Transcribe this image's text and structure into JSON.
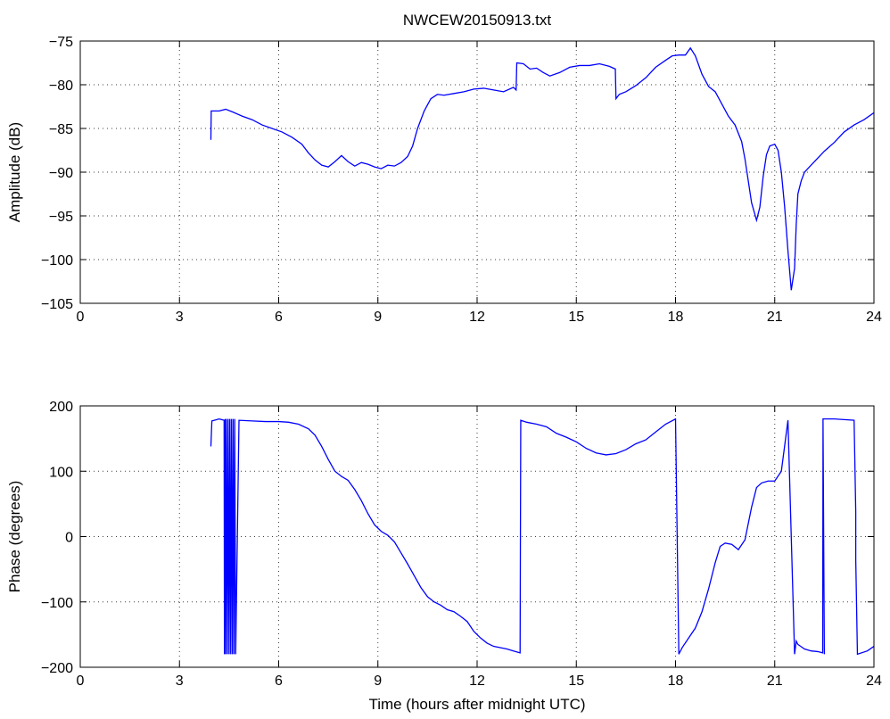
{
  "chart_data": [
    {
      "type": "line",
      "title": "NWCEW20150913.txt",
      "xlabel": "",
      "ylabel": "Amplitude (dB)",
      "xlim": [
        0,
        24
      ],
      "ylim": [
        -105,
        -75
      ],
      "xticks": [
        0,
        3,
        6,
        9,
        12,
        15,
        18,
        21,
        24
      ],
      "yticks": [
        -75,
        -80,
        -85,
        -90,
        -95,
        -100,
        -105
      ],
      "grid": true,
      "color": "#0000ff",
      "series": [
        {
          "x": [
            3.95,
            3.96,
            4.0,
            4.2,
            4.4,
            4.6,
            4.9,
            5.2,
            5.5,
            5.8,
            6.1,
            6.4,
            6.7,
            6.9,
            7.1,
            7.3,
            7.5,
            7.7,
            7.9,
            8.1,
            8.3,
            8.5,
            8.7,
            8.9,
            9.1,
            9.3,
            9.5,
            9.7,
            9.9,
            10.05,
            10.2,
            10.4,
            10.6,
            10.8,
            11.0,
            11.3,
            11.6,
            11.9,
            12.2,
            12.5,
            12.8,
            13.1,
            13.18,
            13.2,
            13.4,
            13.6,
            13.8,
            14.0,
            14.2,
            14.5,
            14.8,
            15.1,
            15.4,
            15.7,
            16.0,
            16.18,
            16.2,
            16.3,
            16.5,
            16.8,
            17.1,
            17.4,
            17.7,
            17.9,
            18.1,
            18.3,
            18.45,
            18.6,
            18.8,
            19.0,
            19.2,
            19.4,
            19.6,
            19.8,
            20.0,
            20.1,
            20.2,
            20.3,
            20.45,
            20.55,
            20.65,
            20.75,
            20.85,
            21.0,
            21.1,
            21.2,
            21.3,
            21.4,
            21.5,
            21.6,
            21.65,
            21.7,
            21.8,
            21.9,
            22.0,
            22.2,
            22.5,
            22.8,
            23.1,
            23.4,
            23.7,
            24.0
          ],
          "y": [
            -86.3,
            -83.0,
            -83.0,
            -83.0,
            -82.8,
            -83.1,
            -83.6,
            -84.0,
            -84.6,
            -85.0,
            -85.4,
            -86.0,
            -86.8,
            -87.8,
            -88.6,
            -89.2,
            -89.4,
            -88.8,
            -88.1,
            -88.8,
            -89.3,
            -88.9,
            -89.1,
            -89.4,
            -89.6,
            -89.2,
            -89.3,
            -88.9,
            -88.2,
            -87.0,
            -85.0,
            -83.0,
            -81.6,
            -81.1,
            -81.2,
            -81.0,
            -80.8,
            -80.5,
            -80.4,
            -80.6,
            -80.8,
            -80.3,
            -80.6,
            -77.5,
            -77.6,
            -78.2,
            -78.1,
            -78.6,
            -79.0,
            -78.6,
            -78.0,
            -77.8,
            -77.8,
            -77.6,
            -77.9,
            -78.2,
            -81.6,
            -81.1,
            -80.8,
            -80.1,
            -79.2,
            -78.0,
            -77.2,
            -76.7,
            -76.6,
            -76.6,
            -75.8,
            -76.7,
            -78.8,
            -80.2,
            -80.8,
            -82.2,
            -83.6,
            -84.6,
            -86.5,
            -88.5,
            -91.0,
            -93.5,
            -95.5,
            -94.0,
            -90.5,
            -88.0,
            -87.0,
            -86.8,
            -87.5,
            -90.0,
            -94.0,
            -99.0,
            -103.5,
            -101.0,
            -96.0,
            -92.5,
            -91.0,
            -90.0,
            -89.6,
            -88.8,
            -87.6,
            -86.6,
            -85.4,
            -84.6,
            -84.0,
            -83.2
          ]
        }
      ]
    },
    {
      "type": "line",
      "title": "",
      "xlabel": "Time (hours after midnight UTC)",
      "ylabel": "Phase (degrees)",
      "xlim": [
        0,
        24
      ],
      "ylim": [
        -200,
        200
      ],
      "xticks": [
        0,
        3,
        6,
        9,
        12,
        15,
        18,
        21,
        24
      ],
      "yticks": [
        200,
        100,
        0,
        -100,
        -200
      ],
      "grid": true,
      "color": "#0000ff",
      "series": [
        {
          "x": [
            3.95,
            3.98,
            4.2,
            4.35,
            4.36,
            4.38,
            4.4,
            4.42,
            4.45,
            4.47,
            4.5,
            4.52,
            4.55,
            4.57,
            4.6,
            4.62,
            4.65,
            4.67,
            4.7,
            4.8,
            5.2,
            5.6,
            6.0,
            6.3,
            6.6,
            6.9,
            7.1,
            7.3,
            7.5,
            7.7,
            7.9,
            8.1,
            8.3,
            8.5,
            8.7,
            8.9,
            9.1,
            9.3,
            9.5,
            9.7,
            9.9,
            10.1,
            10.3,
            10.5,
            10.7,
            10.9,
            11.1,
            11.3,
            11.5,
            11.7,
            11.9,
            12.1,
            12.3,
            12.5,
            12.7,
            12.9,
            13.1,
            13.3,
            13.32,
            13.5,
            13.8,
            14.1,
            14.4,
            14.7,
            15.0,
            15.3,
            15.6,
            15.9,
            16.2,
            16.5,
            16.8,
            17.1,
            17.4,
            17.7,
            18.0,
            18.1,
            18.12,
            18.2,
            18.4,
            18.6,
            18.8,
            19.0,
            19.2,
            19.35,
            19.5,
            19.7,
            19.9,
            20.1,
            20.3,
            20.45,
            20.6,
            20.8,
            21.0,
            21.2,
            21.4,
            21.6,
            21.65,
            21.7,
            21.9,
            22.1,
            22.3,
            22.45,
            22.46,
            22.5,
            22.46,
            22.48,
            22.55,
            22.8,
            23.1,
            23.4,
            23.45,
            23.45,
            23.5,
            23.8,
            24.0
          ],
          "y": [
            138,
            177,
            180,
            178,
            -180,
            180,
            -180,
            180,
            -180,
            180,
            -180,
            180,
            -180,
            180,
            -180,
            180,
            -180,
            180,
            -180,
            178,
            177,
            176,
            176,
            175,
            172,
            165,
            155,
            138,
            118,
            100,
            92,
            86,
            72,
            55,
            35,
            18,
            8,
            2,
            -8,
            -25,
            -42,
            -60,
            -78,
            -92,
            -100,
            -105,
            -112,
            -115,
            -122,
            -130,
            -145,
            -155,
            -163,
            -168,
            -170,
            -172,
            -175,
            -178,
            178,
            175,
            172,
            168,
            158,
            152,
            145,
            135,
            128,
            125,
            127,
            133,
            142,
            148,
            160,
            172,
            180,
            -180,
            -178,
            -170,
            -155,
            -140,
            -115,
            -80,
            -40,
            -15,
            -10,
            -12,
            -20,
            -5,
            45,
            75,
            82,
            85,
            85,
            100,
            178,
            -180,
            -160,
            -165,
            -172,
            -175,
            -176,
            -178,
            180,
            -180,
            180,
            180,
            180,
            180,
            179,
            178,
            38,
            -35,
            -180,
            -175,
            -168
          ]
        }
      ]
    }
  ]
}
